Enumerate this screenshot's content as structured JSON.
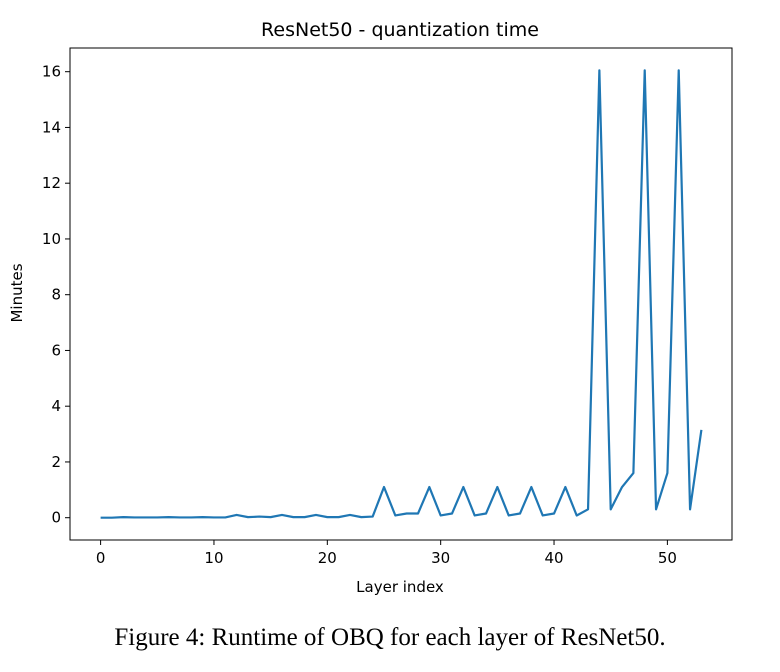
{
  "chart_data": {
    "type": "line",
    "title": "ResNet50 - quantization time",
    "xlabel": "Layer index",
    "ylabel": "Minutes",
    "xlim": [
      -2.7,
      55.7
    ],
    "ylim": [
      -0.8,
      16.85
    ],
    "xticks": [
      0,
      10,
      20,
      30,
      40,
      50
    ],
    "yticks": [
      0,
      2,
      4,
      6,
      8,
      10,
      12,
      14,
      16
    ],
    "grid": false,
    "series": [
      {
        "color": "#1f77b4",
        "x": [
          0,
          1,
          2,
          3,
          4,
          5,
          6,
          7,
          8,
          9,
          10,
          11,
          12,
          13,
          14,
          15,
          16,
          17,
          18,
          19,
          20,
          21,
          22,
          23,
          24,
          25,
          26,
          27,
          28,
          29,
          30,
          31,
          32,
          33,
          34,
          35,
          36,
          37,
          38,
          39,
          40,
          41,
          42,
          43,
          44,
          45,
          46,
          47,
          48,
          49,
          50,
          51,
          52,
          53
        ],
        "y": [
          0,
          0,
          0.02,
          0.01,
          0.01,
          0.01,
          0.02,
          0.01,
          0.01,
          0.02,
          0.01,
          0.01,
          0.1,
          0.02,
          0.04,
          0.02,
          0.1,
          0.02,
          0.02,
          0.1,
          0.02,
          0.02,
          0.1,
          0.02,
          0.04,
          1.1,
          0.08,
          0.15,
          0.15,
          1.1,
          0.08,
          0.15,
          1.1,
          0.08,
          0.15,
          1.1,
          0.08,
          0.15,
          1.1,
          0.08,
          0.15,
          1.1,
          0.08,
          0.3,
          16.05,
          0.3,
          1.1,
          1.6,
          16.05,
          0.3,
          1.6,
          16.05,
          0.3,
          3.15
        ]
      }
    ]
  },
  "caption": "Figure 4: Runtime of OBQ for each layer of ResNet50."
}
